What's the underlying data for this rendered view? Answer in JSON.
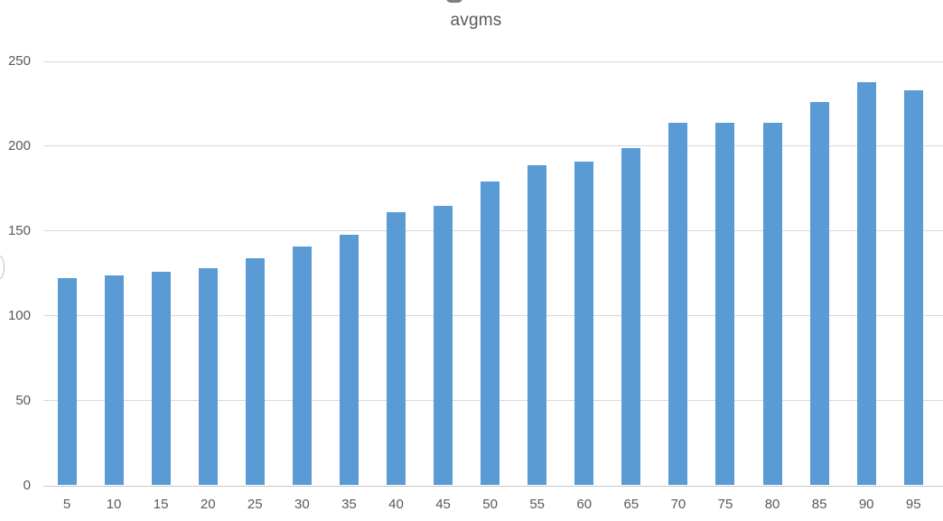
{
  "chart": {
    "title": "avgms"
  },
  "chart_data": {
    "type": "bar",
    "title": "avgms",
    "categories": [
      "5",
      "10",
      "15",
      "20",
      "25",
      "30",
      "35",
      "40",
      "45",
      "50",
      "55",
      "60",
      "65",
      "70",
      "75",
      "80",
      "85",
      "90",
      "95"
    ],
    "values": [
      122,
      124,
      126,
      128,
      134,
      141,
      148,
      161,
      165,
      179,
      189,
      191,
      199,
      214,
      214,
      214,
      226,
      238,
      233
    ],
    "xlabel": "",
    "ylabel": "",
    "ylim": [
      0,
      250
    ],
    "yticks": [
      0,
      50,
      100,
      150,
      200,
      250
    ],
    "grid": true,
    "legend_position": "none",
    "bar_color": "#5b9bd5",
    "gridline_color": "#d9d9d9",
    "axis_line_color": "#c6c6c6",
    "text_color": "#595959"
  }
}
